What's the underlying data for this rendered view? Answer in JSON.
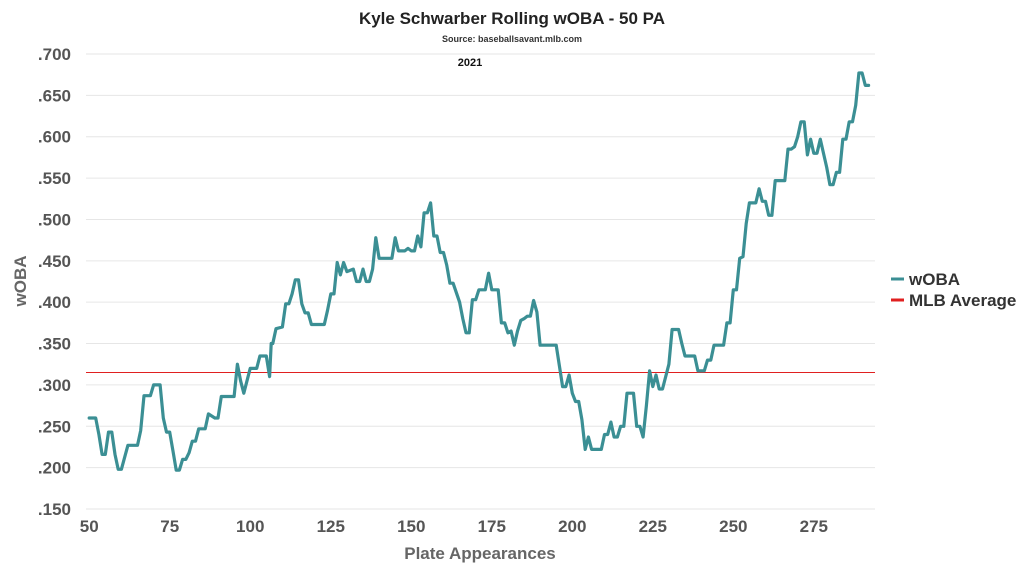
{
  "chart_data": {
    "type": "line",
    "title": "Kyle Schwarber Rolling wOBA - 50 PA",
    "subtitle": "Source: baseballsavant.mlb.com",
    "facet_label": "2021",
    "xlabel": "Plate Appearances",
    "ylabel": "wOBA",
    "xlim": [
      49,
      294
    ],
    "ylim": [
      0.15,
      0.7
    ],
    "x_ticks": [
      50,
      75,
      100,
      125,
      150,
      175,
      200,
      225,
      250,
      275
    ],
    "y_ticks": [
      0.15,
      0.2,
      0.25,
      0.3,
      0.35,
      0.4,
      0.45,
      0.5,
      0.55,
      0.6,
      0.65,
      0.7
    ],
    "y_tick_labels": [
      ".150",
      ".200",
      ".250",
      ".300",
      ".350",
      ".400",
      ".450",
      ".500",
      ".550",
      ".600",
      ".650",
      ".700"
    ],
    "grid": true,
    "legend_position": "right",
    "mlb_average": 0.315,
    "series": [
      {
        "name": "wOBA",
        "color": "#3b8f94",
        "points": [
          [
            50,
            0.26
          ],
          [
            52,
            0.26
          ],
          [
            53,
            0.24
          ],
          [
            54,
            0.216
          ],
          [
            55,
            0.216
          ],
          [
            56,
            0.243
          ],
          [
            57,
            0.243
          ],
          [
            58,
            0.216
          ],
          [
            59,
            0.198
          ],
          [
            60,
            0.198
          ],
          [
            62,
            0.227
          ],
          [
            65,
            0.227
          ],
          [
            66,
            0.245
          ],
          [
            67,
            0.287
          ],
          [
            68,
            0.287
          ],
          [
            69,
            0.287
          ],
          [
            70,
            0.3
          ],
          [
            72,
            0.3
          ],
          [
            73,
            0.26
          ],
          [
            74,
            0.243
          ],
          [
            75,
            0.243
          ],
          [
            76,
            0.22
          ],
          [
            77,
            0.197
          ],
          [
            78,
            0.197
          ],
          [
            79,
            0.21
          ],
          [
            80,
            0.21
          ],
          [
            81,
            0.218
          ],
          [
            82,
            0.232
          ],
          [
            83,
            0.232
          ],
          [
            84,
            0.247
          ],
          [
            86,
            0.247
          ],
          [
            87,
            0.265
          ],
          [
            89,
            0.26
          ],
          [
            90,
            0.26
          ],
          [
            91,
            0.286
          ],
          [
            92,
            0.286
          ],
          [
            95,
            0.286
          ],
          [
            96,
            0.325
          ],
          [
            97,
            0.305
          ],
          [
            98,
            0.29
          ],
          [
            99,
            0.305
          ],
          [
            100,
            0.32
          ],
          [
            102,
            0.32
          ],
          [
            103,
            0.335
          ],
          [
            105,
            0.335
          ],
          [
            106,
            0.31
          ],
          [
            106.5,
            0.35
          ],
          [
            107,
            0.35
          ],
          [
            108,
            0.368
          ],
          [
            110,
            0.37
          ],
          [
            111,
            0.398
          ],
          [
            112,
            0.398
          ],
          [
            113,
            0.41
          ],
          [
            114,
            0.427
          ],
          [
            115,
            0.427
          ],
          [
            116,
            0.398
          ],
          [
            117,
            0.387
          ],
          [
            118,
            0.387
          ],
          [
            119,
            0.373
          ],
          [
            123,
            0.373
          ],
          [
            124,
            0.39
          ],
          [
            125,
            0.41
          ],
          [
            126,
            0.41
          ],
          [
            127,
            0.448
          ],
          [
            128,
            0.433
          ],
          [
            129,
            0.448
          ],
          [
            130,
            0.437
          ],
          [
            132,
            0.44
          ],
          [
            133,
            0.425
          ],
          [
            134,
            0.425
          ],
          [
            135,
            0.44
          ],
          [
            136,
            0.425
          ],
          [
            137,
            0.425
          ],
          [
            138,
            0.44
          ],
          [
            139,
            0.478
          ],
          [
            140,
            0.453
          ],
          [
            144,
            0.453
          ],
          [
            145,
            0.478
          ],
          [
            146,
            0.462
          ],
          [
            148,
            0.462
          ],
          [
            149,
            0.465
          ],
          [
            150,
            0.462
          ],
          [
            151,
            0.462
          ],
          [
            152,
            0.48
          ],
          [
            153,
            0.467
          ],
          [
            154,
            0.508
          ],
          [
            155,
            0.508
          ],
          [
            156,
            0.52
          ],
          [
            157,
            0.48
          ],
          [
            158,
            0.48
          ],
          [
            159,
            0.46
          ],
          [
            160,
            0.46
          ],
          [
            161,
            0.445
          ],
          [
            162,
            0.423
          ],
          [
            163,
            0.423
          ],
          [
            165,
            0.4
          ],
          [
            166,
            0.38
          ],
          [
            167,
            0.363
          ],
          [
            168,
            0.363
          ],
          [
            169,
            0.403
          ],
          [
            170,
            0.403
          ],
          [
            171,
            0.415
          ],
          [
            173,
            0.415
          ],
          [
            174,
            0.435
          ],
          [
            175,
            0.415
          ],
          [
            176,
            0.415
          ],
          [
            177,
            0.415
          ],
          [
            178,
            0.375
          ],
          [
            179,
            0.375
          ],
          [
            180,
            0.363
          ],
          [
            181,
            0.365
          ],
          [
            182,
            0.348
          ],
          [
            183,
            0.365
          ],
          [
            184,
            0.378
          ],
          [
            185,
            0.38
          ],
          [
            186,
            0.383
          ],
          [
            187,
            0.383
          ],
          [
            188,
            0.402
          ],
          [
            189,
            0.388
          ],
          [
            190,
            0.348
          ],
          [
            195,
            0.348
          ],
          [
            196,
            0.323
          ],
          [
            197,
            0.298
          ],
          [
            198,
            0.298
          ],
          [
            199,
            0.312
          ],
          [
            200,
            0.29
          ],
          [
            201,
            0.28
          ],
          [
            202,
            0.28
          ],
          [
            203,
            0.258
          ],
          [
            204,
            0.222
          ],
          [
            205,
            0.237
          ],
          [
            206,
            0.222
          ],
          [
            209,
            0.222
          ],
          [
            210,
            0.24
          ],
          [
            211,
            0.24
          ],
          [
            212,
            0.255
          ],
          [
            213,
            0.237
          ],
          [
            214,
            0.237
          ],
          [
            215,
            0.25
          ],
          [
            216,
            0.25
          ],
          [
            217,
            0.29
          ],
          [
            218,
            0.29
          ],
          [
            219,
            0.29
          ],
          [
            220,
            0.25
          ],
          [
            221,
            0.25
          ],
          [
            222,
            0.237
          ],
          [
            223,
            0.275
          ],
          [
            224,
            0.317
          ],
          [
            225,
            0.298
          ],
          [
            226,
            0.312
          ],
          [
            227,
            0.295
          ],
          [
            228,
            0.295
          ],
          [
            229,
            0.31
          ],
          [
            230,
            0.325
          ],
          [
            231,
            0.367
          ],
          [
            233,
            0.367
          ],
          [
            234,
            0.35
          ],
          [
            235,
            0.335
          ],
          [
            238,
            0.335
          ],
          [
            239,
            0.317
          ],
          [
            241,
            0.317
          ],
          [
            242,
            0.33
          ],
          [
            243,
            0.33
          ],
          [
            244,
            0.348
          ],
          [
            246,
            0.348
          ],
          [
            247,
            0.348
          ],
          [
            248,
            0.375
          ],
          [
            249,
            0.375
          ],
          [
            250,
            0.415
          ],
          [
            251,
            0.415
          ],
          [
            252,
            0.453
          ],
          [
            253,
            0.455
          ],
          [
            254,
            0.495
          ],
          [
            255,
            0.52
          ],
          [
            256,
            0.52
          ],
          [
            257,
            0.52
          ],
          [
            258,
            0.537
          ],
          [
            259,
            0.522
          ],
          [
            260,
            0.522
          ],
          [
            261,
            0.505
          ],
          [
            262,
            0.505
          ],
          [
            263,
            0.547
          ],
          [
            266,
            0.547
          ],
          [
            267,
            0.585
          ],
          [
            268,
            0.585
          ],
          [
            269,
            0.588
          ],
          [
            270,
            0.6
          ],
          [
            271,
            0.618
          ],
          [
            272,
            0.618
          ],
          [
            273,
            0.578
          ],
          [
            274,
            0.597
          ],
          [
            275,
            0.58
          ],
          [
            276,
            0.58
          ],
          [
            277,
            0.597
          ],
          [
            278,
            0.58
          ],
          [
            279,
            0.563
          ],
          [
            280,
            0.542
          ],
          [
            281,
            0.542
          ],
          [
            282,
            0.557
          ],
          [
            283,
            0.557
          ],
          [
            284,
            0.597
          ],
          [
            285,
            0.597
          ],
          [
            286,
            0.618
          ],
          [
            287,
            0.618
          ],
          [
            288,
            0.638
          ],
          [
            289,
            0.677
          ],
          [
            290,
            0.677
          ],
          [
            291,
            0.662
          ],
          [
            292,
            0.662
          ]
        ]
      },
      {
        "name": "MLB Average",
        "color": "#e02020"
      }
    ]
  }
}
